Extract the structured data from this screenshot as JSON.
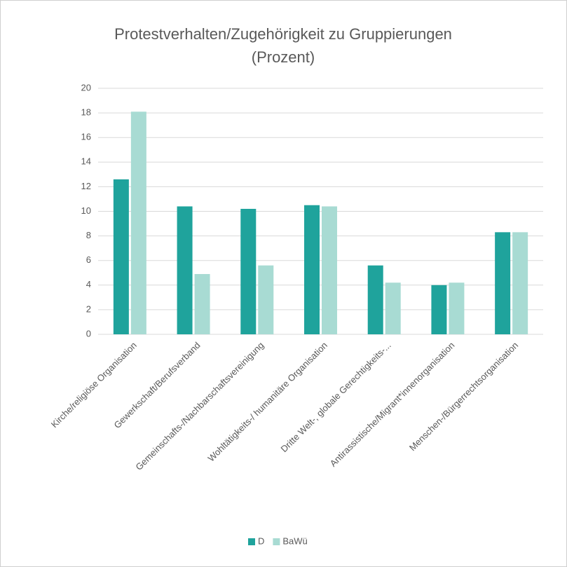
{
  "chart_data": {
    "type": "bar",
    "title": [
      "Protestverhalten/Zugehörigkeit zu Gruppierungen",
      "(Prozent)"
    ],
    "categories": [
      "Kirche/religiöse Organisation",
      "Gewerkschaft/Berufsverband",
      "Gemeinschafts-/Nachbarschaftsvereinigung",
      "Wohltätigkeits-/ humanitäre Organisation",
      "Dritte Welt-, globale Gerechtigkeits-...",
      "Antirassistische/Migrant*innenorganisation",
      "Menschen-/Bürgerrechtsorganisation"
    ],
    "series": [
      {
        "name": "D",
        "color": "#1fa39c",
        "values": [
          12.6,
          10.4,
          10.2,
          10.5,
          5.6,
          4.0,
          8.3
        ]
      },
      {
        "name": "BaWü",
        "color": "#a8dbd3",
        "values": [
          18.1,
          4.9,
          5.6,
          10.4,
          4.2,
          4.2,
          8.3
        ]
      }
    ],
    "ylim": [
      0,
      20
    ],
    "yticks": [
      0,
      2,
      4,
      6,
      8,
      10,
      12,
      14,
      16,
      18,
      20
    ],
    "grid": true,
    "legend": "bottom"
  }
}
